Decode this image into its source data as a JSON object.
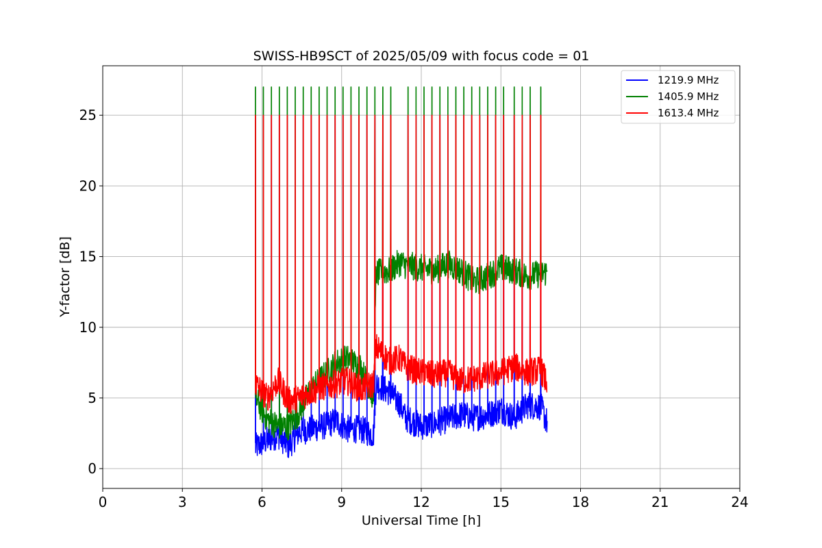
{
  "chart_data": {
    "type": "line",
    "title": "SWISS-HB9SCT of 2025/05/09 with focus code = 01",
    "xlabel": "Universal Time [h]",
    "ylabel": "Y-factor [dB]",
    "xlim": [
      0,
      24
    ],
    "ylim": [
      -1.4,
      28.5
    ],
    "xticks": [
      0,
      3,
      6,
      9,
      12,
      15,
      18,
      21,
      24
    ],
    "yticks": [
      0,
      5,
      10,
      15,
      20,
      25
    ],
    "grid": true,
    "legend_position": "top-right",
    "calibration_spike_times": [
      5.75,
      6.05,
      6.35,
      6.65,
      6.95,
      7.25,
      7.55,
      7.85,
      8.15,
      8.45,
      8.75,
      9.05,
      9.35,
      9.65,
      9.95,
      10.25,
      10.55,
      10.85,
      11.5,
      11.8,
      12.1,
      12.4,
      12.7,
      13.0,
      13.3,
      13.6,
      13.9,
      14.2,
      14.5,
      14.8,
      15.1,
      15.5,
      15.8,
      16.1,
      16.5
    ],
    "series": [
      {
        "name": "1219.9 MHz",
        "color": "#0000ff",
        "spike_level": 25.0,
        "time_start": 5.75,
        "time_end": 16.75,
        "baseline": [
          {
            "t": 5.75,
            "y": 1.5
          },
          {
            "t": 6.2,
            "y": 2.0
          },
          {
            "t": 6.6,
            "y": 2.4
          },
          {
            "t": 7.0,
            "y": 1.6
          },
          {
            "t": 7.4,
            "y": 2.6
          },
          {
            "t": 7.8,
            "y": 2.8
          },
          {
            "t": 8.3,
            "y": 3.0
          },
          {
            "t": 8.8,
            "y": 3.4
          },
          {
            "t": 9.2,
            "y": 2.8
          },
          {
            "t": 9.7,
            "y": 2.8
          },
          {
            "t": 10.2,
            "y": 2.4
          },
          {
            "t": 10.3,
            "y": 6.0
          },
          {
            "t": 10.8,
            "y": 5.4
          },
          {
            "t": 11.2,
            "y": 4.6
          },
          {
            "t": 11.4,
            "y": 3.6
          },
          {
            "t": 12.0,
            "y": 3.0
          },
          {
            "t": 12.5,
            "y": 3.2
          },
          {
            "t": 13.0,
            "y": 3.5
          },
          {
            "t": 13.5,
            "y": 3.8
          },
          {
            "t": 14.0,
            "y": 3.6
          },
          {
            "t": 14.5,
            "y": 3.8
          },
          {
            "t": 15.0,
            "y": 4.2
          },
          {
            "t": 15.5,
            "y": 3.6
          },
          {
            "t": 16.0,
            "y": 4.5
          },
          {
            "t": 16.5,
            "y": 4.4
          },
          {
            "t": 16.75,
            "y": 3.2
          }
        ]
      },
      {
        "name": "1405.9 MHz",
        "color": "#008000",
        "spike_level": 27.0,
        "time_start": 5.75,
        "time_end": 16.75,
        "baseline": [
          {
            "t": 5.75,
            "y": 5.0
          },
          {
            "t": 6.2,
            "y": 3.5
          },
          {
            "t": 6.6,
            "y": 3.0
          },
          {
            "t": 7.0,
            "y": 3.0
          },
          {
            "t": 7.4,
            "y": 4.0
          },
          {
            "t": 7.8,
            "y": 5.5
          },
          {
            "t": 8.3,
            "y": 6.5
          },
          {
            "t": 8.8,
            "y": 7.5
          },
          {
            "t": 9.2,
            "y": 7.8
          },
          {
            "t": 9.7,
            "y": 7.2
          },
          {
            "t": 10.2,
            "y": 5.0
          },
          {
            "t": 10.3,
            "y": 13.8
          },
          {
            "t": 10.8,
            "y": 14.0
          },
          {
            "t": 11.2,
            "y": 14.6
          },
          {
            "t": 11.4,
            "y": 14.4
          },
          {
            "t": 12.0,
            "y": 14.2
          },
          {
            "t": 12.5,
            "y": 14.0
          },
          {
            "t": 13.0,
            "y": 14.5
          },
          {
            "t": 13.5,
            "y": 14.0
          },
          {
            "t": 14.0,
            "y": 13.2
          },
          {
            "t": 14.5,
            "y": 13.6
          },
          {
            "t": 15.0,
            "y": 14.2
          },
          {
            "t": 15.5,
            "y": 14.0
          },
          {
            "t": 16.0,
            "y": 13.6
          },
          {
            "t": 16.5,
            "y": 13.8
          },
          {
            "t": 16.75,
            "y": 13.9
          }
        ]
      },
      {
        "name": "1613.4 MHz",
        "color": "#ff0000",
        "spike_level": 25.0,
        "time_start": 5.75,
        "time_end": 16.75,
        "baseline": [
          {
            "t": 5.75,
            "y": 6.0
          },
          {
            "t": 6.2,
            "y": 5.0
          },
          {
            "t": 6.6,
            "y": 6.2
          },
          {
            "t": 7.0,
            "y": 4.8
          },
          {
            "t": 7.4,
            "y": 5.0
          },
          {
            "t": 7.8,
            "y": 5.4
          },
          {
            "t": 8.3,
            "y": 5.8
          },
          {
            "t": 8.8,
            "y": 6.0
          },
          {
            "t": 9.2,
            "y": 6.2
          },
          {
            "t": 9.7,
            "y": 5.6
          },
          {
            "t": 10.2,
            "y": 6.0
          },
          {
            "t": 10.3,
            "y": 8.6
          },
          {
            "t": 10.8,
            "y": 7.6
          },
          {
            "t": 11.2,
            "y": 7.8
          },
          {
            "t": 11.4,
            "y": 7.2
          },
          {
            "t": 12.0,
            "y": 6.8
          },
          {
            "t": 12.5,
            "y": 6.6
          },
          {
            "t": 13.0,
            "y": 6.8
          },
          {
            "t": 13.5,
            "y": 6.2
          },
          {
            "t": 14.0,
            "y": 6.4
          },
          {
            "t": 14.5,
            "y": 6.6
          },
          {
            "t": 15.0,
            "y": 6.8
          },
          {
            "t": 15.5,
            "y": 7.2
          },
          {
            "t": 16.0,
            "y": 6.8
          },
          {
            "t": 16.5,
            "y": 7.0
          },
          {
            "t": 16.75,
            "y": 6.0
          }
        ]
      }
    ]
  }
}
